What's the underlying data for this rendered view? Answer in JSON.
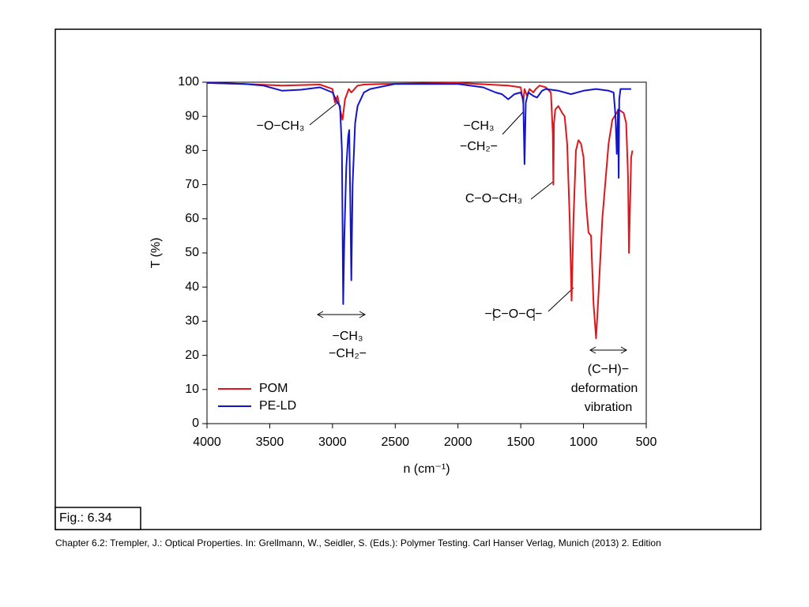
{
  "chart_data": {
    "type": "line",
    "y_label": "T (%)",
    "x_label": "n (cm⁻¹)",
    "xlim": [
      4000,
      500
    ],
    "xticks": [
      4000,
      3500,
      3000,
      2500,
      2000,
      1500,
      1000,
      500
    ],
    "ylim": [
      0,
      100
    ],
    "yticks": [
      0,
      10,
      20,
      30,
      40,
      50,
      60,
      70,
      80,
      90,
      100
    ],
    "legend": "lower left",
    "series": [
      {
        "name": "POM",
        "color": "#e0161b",
        "x": [
          4000,
          3700,
          3400,
          3100,
          3000,
          2980,
          2960,
          2940,
          2920,
          2900,
          2870,
          2850,
          2800,
          2750,
          2600,
          2000,
          1600,
          1500,
          1480,
          1470,
          1450,
          1430,
          1400,
          1380,
          1350,
          1300,
          1260,
          1245,
          1240,
          1235,
          1225,
          1200,
          1170,
          1150,
          1130,
          1110,
          1095,
          1080,
          1060,
          1040,
          1020,
          1000,
          980,
          960,
          940,
          920,
          900,
          880,
          850,
          800,
          770,
          720,
          680,
          660,
          645,
          638,
          630,
          620,
          610
        ],
        "values": [
          99.8,
          99.5,
          99,
          99.3,
          98,
          94,
          96,
          92,
          89,
          95,
          98,
          97,
          99,
          99.3,
          99.5,
          99.8,
          99,
          98.5,
          94,
          98,
          96,
          98,
          97,
          98,
          99,
          98.5,
          97,
          85,
          70,
          88,
          92,
          93,
          91,
          90,
          82,
          60,
          36,
          60,
          80,
          83,
          82,
          78,
          65,
          56,
          55,
          35,
          25,
          38,
          60,
          82,
          89,
          92,
          91,
          88,
          72,
          50,
          62,
          78,
          80
        ]
      },
      {
        "name": "PE-LD",
        "color": "#1316c8",
        "x": [
          4000,
          3700,
          3550,
          3400,
          3250,
          3100,
          3000,
          2960,
          2940,
          2925,
          2915,
          2905,
          2890,
          2875,
          2867,
          2858,
          2850,
          2840,
          2820,
          2800,
          2750,
          2700,
          2500,
          2000,
          1800,
          1700,
          1650,
          1600,
          1550,
          1500,
          1480,
          1470,
          1460,
          1440,
          1400,
          1370,
          1330,
          1300,
          1200,
          1100,
          1000,
          900,
          800,
          760,
          745,
          735,
          730,
          725,
          720,
          715,
          705,
          680,
          620
        ],
        "values": [
          99.8,
          99.5,
          99,
          97.5,
          97.8,
          98.5,
          97,
          94,
          93,
          80,
          35,
          55,
          75,
          84,
          86,
          65,
          42,
          70,
          88,
          93,
          97,
          98,
          99.5,
          99.5,
          98.5,
          97,
          96.5,
          95,
          96.5,
          97,
          95,
          76,
          94,
          97,
          96,
          95.5,
          97.5,
          98,
          97.5,
          96.5,
          97.5,
          98,
          97.5,
          97,
          90,
          79,
          85,
          92,
          72,
          95,
          98,
          98,
          98
        ]
      }
    ],
    "annotations": [
      "−O−CH₃",
      "−CH₃",
      "−CH₂−",
      "−CH₃",
      "−CH₂−",
      "C−O−CH₃",
      "−C−O−C−",
      "(C−H)−",
      "deformation",
      "vibration"
    ],
    "figure_label": "Fig.: 6.34"
  },
  "caption": "Chapter 6.2: Trempler, J.: Optical Properties. In: Grellmann, W., Seidler, S. (Eds.): Polymer Testing. Carl Hanser Verlag, Munich (2013) 2. Edition"
}
